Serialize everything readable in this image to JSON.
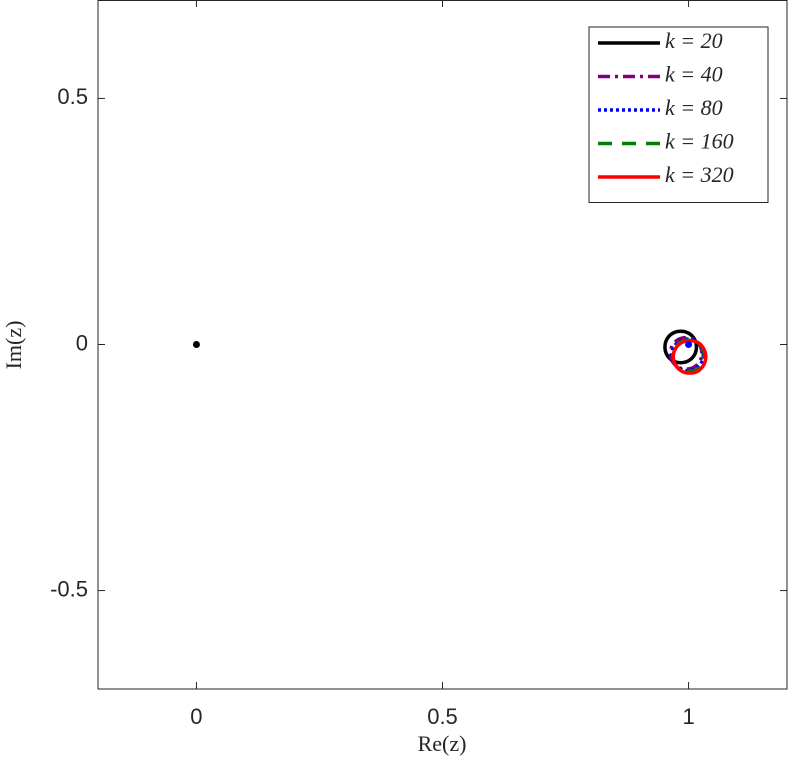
{
  "chart_data": {
    "type": "line",
    "xlabel": "Re(z)",
    "ylabel": "Im(z)",
    "xlim": [
      -0.2,
      1.2
    ],
    "ylim": [
      -0.7,
      0.7
    ],
    "xticks": [
      0,
      0.5,
      1
    ],
    "yticks": [
      -0.5,
      0,
      0.5
    ],
    "grid": false,
    "legend": "northeast",
    "series": [
      {
        "name": "k = 20",
        "color": "#000000",
        "linestyle": "solid",
        "x": [
          1.016,
          1.012,
          1.0,
          0.984,
          0.968,
          0.956,
          0.952,
          0.956,
          0.968,
          0.984,
          1.0,
          1.012
        ],
        "values": [
          -0.005,
          0.011,
          0.023,
          0.027,
          0.023,
          0.011,
          -0.005,
          -0.021,
          -0.033,
          -0.037,
          -0.033,
          -0.021
        ]
      },
      {
        "name": "k = 40",
        "color": "#800080",
        "linestyle": "dashdot",
        "x": [
          1.027,
          1.023,
          1.011,
          0.995,
          0.979,
          0.967,
          0.963,
          0.967,
          0.979,
          0.995,
          1.011,
          1.023
        ],
        "values": [
          -0.018,
          -0.002,
          0.01,
          0.014,
          0.01,
          -0.002,
          -0.018,
          -0.034,
          -0.046,
          -0.05,
          -0.046,
          -0.034
        ]
      },
      {
        "name": "k = 80",
        "color": "#0000ff",
        "linestyle": "dotted",
        "x": [
          1.03,
          1.026,
          1.014,
          0.998,
          0.982,
          0.97,
          0.966,
          0.97,
          0.982,
          0.998,
          1.014,
          1.026
        ],
        "values": [
          -0.021,
          -0.005,
          0.007,
          0.011,
          0.007,
          -0.005,
          -0.021,
          -0.037,
          -0.049,
          -0.053,
          -0.049,
          -0.037
        ]
      },
      {
        "name": "k = 160",
        "color": "#008000",
        "linestyle": "dashed",
        "x": [
          1.032,
          1.028,
          1.016,
          1.0,
          0.984,
          0.972,
          0.968,
          0.972,
          0.984,
          1.0,
          1.016,
          1.028
        ],
        "values": [
          -0.023,
          -0.007,
          0.005,
          0.009,
          0.005,
          -0.007,
          -0.023,
          -0.039,
          -0.051,
          -0.055,
          -0.051,
          -0.039
        ]
      },
      {
        "name": "k = 320",
        "color": "#ff0000",
        "linestyle": "solid",
        "x": [
          1.035,
          1.031,
          1.019,
          1.002,
          0.986,
          0.973,
          0.969,
          0.973,
          0.986,
          1.002,
          1.019,
          1.031
        ],
        "values": [
          -0.025,
          -0.009,
          0.004,
          0.008,
          0.004,
          -0.009,
          -0.025,
          -0.041,
          -0.054,
          -0.058,
          -0.054,
          -0.041
        ]
      }
    ],
    "points": [
      {
        "x": 0,
        "y": 0,
        "color": "#000000"
      },
      {
        "x": 1,
        "y": 0,
        "color": "#0000ff"
      }
    ]
  }
}
